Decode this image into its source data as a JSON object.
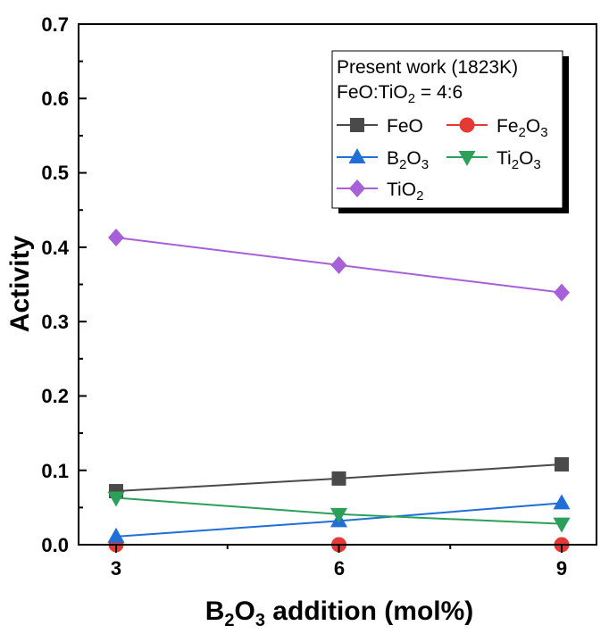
{
  "chart_data": {
    "type": "line",
    "x": [
      3,
      6,
      9
    ],
    "xticks": [
      "3",
      "6",
      "9"
    ],
    "xlim": [
      2.2,
      9.2
    ],
    "ylim": [
      0,
      0.7
    ],
    "yticks": [
      "0.0",
      "0.1",
      "0.2",
      "0.3",
      "0.4",
      "0.5",
      "0.6",
      "0.7"
    ],
    "xlabel": {
      "a": "B",
      "a_sub": "2",
      "b": "O",
      "b_sub": "3",
      "c": " addition (mol%)"
    },
    "ylabel": "Activity",
    "grid": false,
    "legend_position": "top-right",
    "legend_title_line1": "Present work (1823K)",
    "legend_title_line2": {
      "a": "FeO:TiO",
      "a_sub": "2",
      "b": " = 4:6"
    },
    "series": [
      {
        "name": "FeO",
        "label": {
          "a": "FeO",
          "a_sub": "",
          "b": "",
          "b_sub": ""
        },
        "marker": "square",
        "color": "#4a4a4a",
        "values": [
          0.072,
          0.089,
          0.108
        ]
      },
      {
        "name": "Fe2O3",
        "label": {
          "a": "Fe",
          "a_sub": "2",
          "b": "O",
          "b_sub": "3"
        },
        "marker": "circle",
        "color": "#e53935",
        "values": [
          0.0,
          0.0,
          0.0
        ]
      },
      {
        "name": "B2O3",
        "label": {
          "a": "B",
          "a_sub": "2",
          "b": "O",
          "b_sub": "3"
        },
        "marker": "triangle-up",
        "color": "#1f6fd6",
        "values": [
          0.011,
          0.032,
          0.056
        ]
      },
      {
        "name": "Ti2O3",
        "label": {
          "a": "Ti",
          "a_sub": "2",
          "b": "O",
          "b_sub": "3"
        },
        "marker": "triangle-down",
        "color": "#2ca05a",
        "values": [
          0.063,
          0.041,
          0.028
        ]
      },
      {
        "name": "TiO2",
        "label": {
          "a": "TiO",
          "a_sub": "2",
          "b": "",
          "b_sub": ""
        },
        "marker": "diamond",
        "color": "#a860d8",
        "values": [
          0.413,
          0.376,
          0.339
        ]
      }
    ]
  }
}
